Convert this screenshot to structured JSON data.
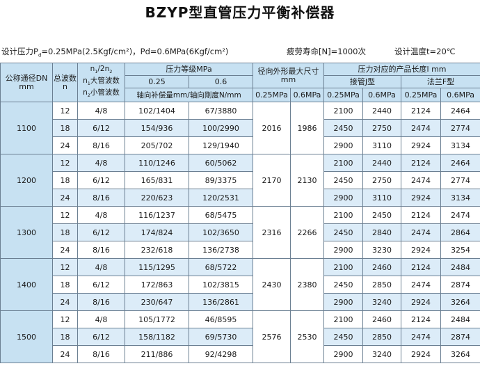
{
  "title": "BZYP型直管压力平衡补偿器",
  "conditions": {
    "design_pressure": {
      "prefix": "设计压力P",
      "sub": "d",
      "rest": "=0.25MPa(2.5Kgf/cm²)，Pd=0.6MPa(6Kgf/cm²)"
    },
    "fatigue_life": "疲劳寿命[N]=1000次",
    "design_temperature": "设计温度t=20℃"
  },
  "headers": {
    "dn": "公称通径DN",
    "dn_unit": "mm",
    "waves": "总波数",
    "waves_unit": "n",
    "ratio_line1": {
      "a": "n",
      "a_sub": "1",
      "mid": "/2n",
      "b_sub": "2"
    },
    "ratio_line2": {
      "a": "n",
      "a_sub": "1",
      "text": "大管波数"
    },
    "ratio_line3": {
      "a": "n",
      "a_sub": "2",
      "text": "小管波数"
    },
    "pressure_grade": "压力等级MPa",
    "p025": "0.25",
    "p06": "0.6",
    "axial": "轴向补偿量mm/轴向刚度N/mm",
    "od_max": "径向外形最大尺寸",
    "od_unit": "mm",
    "od_025": "0.25MPa",
    "od_06": "0.6MPa",
    "length": "压力对应的产品长度l mm",
    "pipe_j": "接管J型",
    "flange_f": "法兰F型",
    "j_025": "0.25MPa",
    "j_06": "0.6MPa",
    "f_025": "0.25MPa",
    "f_06": "0.6MPa"
  },
  "groups": [
    {
      "dn": "1100",
      "od025": "2016",
      "od06": "1986",
      "rows": [
        {
          "n": "12",
          "ratio": "4/8",
          "p025": "102/1404",
          "p06": "67/3880",
          "j025": "2100",
          "j06": "2440",
          "f025": "2124",
          "f06": "2464"
        },
        {
          "n": "18",
          "ratio": "6/12",
          "p025": "154/936",
          "p06": "100/2990",
          "j025": "2450",
          "j06": "2750",
          "f025": "2474",
          "f06": "2774"
        },
        {
          "n": "24",
          "ratio": "8/16",
          "p025": "205/702",
          "p06": "129/1940",
          "j025": "2900",
          "j06": "3110",
          "f025": "2924",
          "f06": "3134"
        }
      ]
    },
    {
      "dn": "1200",
      "od025": "2170",
      "od06": "2130",
      "rows": [
        {
          "n": "12",
          "ratio": "4/8",
          "p025": "110/1246",
          "p06": "60/5062",
          "j025": "2100",
          "j06": "2440",
          "f025": "2124",
          "f06": "2464"
        },
        {
          "n": "18",
          "ratio": "6/12",
          "p025": "165/831",
          "p06": "89/3375",
          "j025": "2450",
          "j06": "2750",
          "f025": "2474",
          "f06": "2774"
        },
        {
          "n": "24",
          "ratio": "8/16",
          "p025": "220/623",
          "p06": "120/2531",
          "j025": "2900",
          "j06": "3110",
          "f025": "2924",
          "f06": "3134"
        }
      ]
    },
    {
      "dn": "1300",
      "od025": "2316",
      "od06": "2266",
      "rows": [
        {
          "n": "12",
          "ratio": "4/8",
          "p025": "116/1237",
          "p06": "68/5475",
          "j025": "2100",
          "j06": "2450",
          "f025": "2124",
          "f06": "2474"
        },
        {
          "n": "18",
          "ratio": "6/12",
          "p025": "174/824",
          "p06": "102/3650",
          "j025": "2450",
          "j06": "2840",
          "f025": "2474",
          "f06": "2864"
        },
        {
          "n": "24",
          "ratio": "8/16",
          "p025": "232/618",
          "p06": "136/2738",
          "j025": "2900",
          "j06": "3230",
          "f025": "2924",
          "f06": "3254"
        }
      ]
    },
    {
      "dn": "1400",
      "od025": "2430",
      "od06": "2380",
      "rows": [
        {
          "n": "12",
          "ratio": "4/8",
          "p025": "115/1295",
          "p06": "68/5722",
          "j025": "2100",
          "j06": "2460",
          "f025": "2124",
          "f06": "2484"
        },
        {
          "n": "18",
          "ratio": "6/12",
          "p025": "172/863",
          "p06": "102/3815",
          "j025": "2450",
          "j06": "2850",
          "f025": "2474",
          "f06": "2874"
        },
        {
          "n": "24",
          "ratio": "8/16",
          "p025": "230/647",
          "p06": "136/2861",
          "j025": "2900",
          "j06": "3240",
          "f025": "2924",
          "f06": "3264"
        }
      ]
    },
    {
      "dn": "1500",
      "od025": "2576",
      "od06": "2530",
      "rows": [
        {
          "n": "12",
          "ratio": "4/8",
          "p025": "105/1772",
          "p06": "46/8595",
          "j025": "2100",
          "j06": "2460",
          "f025": "2124",
          "f06": "2484"
        },
        {
          "n": "18",
          "ratio": "6/12",
          "p025": "158/1182",
          "p06": "69/5730",
          "j025": "2450",
          "j06": "2850",
          "f025": "2474",
          "f06": "2874"
        },
        {
          "n": "24",
          "ratio": "8/16",
          "p025": "211/886",
          "p06": "92/4298",
          "j025": "2900",
          "j06": "3240",
          "f025": "2924",
          "f06": "3264"
        }
      ]
    }
  ]
}
